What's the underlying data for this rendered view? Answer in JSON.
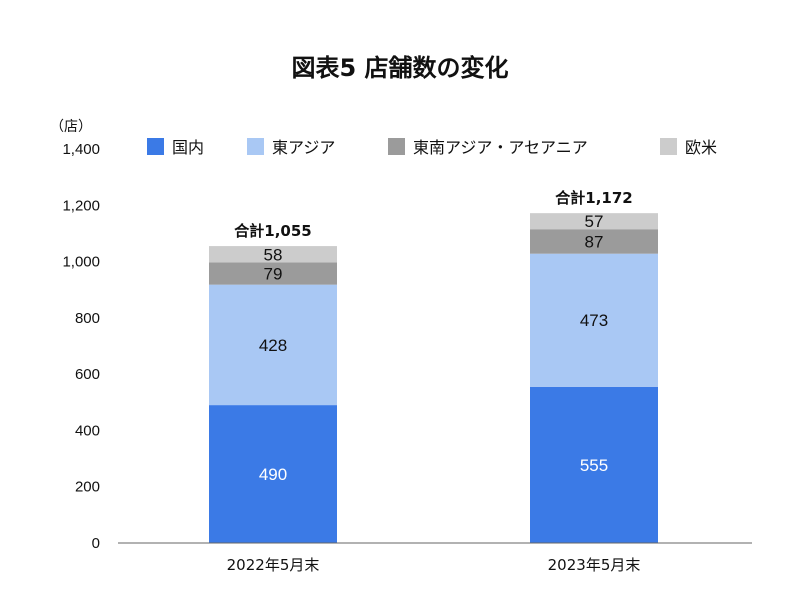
{
  "chart_data": {
    "type": "bar",
    "stacked": true,
    "title": "図表5 店舗数の変化",
    "ylabel": "（店）",
    "ylim": [
      0,
      1400
    ],
    "yticks": [
      0,
      200,
      400,
      600,
      800,
      1000,
      1200,
      1400
    ],
    "ytick_labels": [
      "0",
      "200",
      "400",
      "600",
      "800",
      "1,000",
      "1,200",
      "1,400"
    ],
    "categories": [
      "2022年5月末",
      "2023年5月末"
    ],
    "series": [
      {
        "name": "国内",
        "values": [
          490,
          555
        ],
        "color": "#3b7ae6",
        "label_color": "#ffffff"
      },
      {
        "name": "東アジア",
        "values": [
          428,
          473
        ],
        "color": "#a9c8f4",
        "label_color": "#111111"
      },
      {
        "name": "東南アジア・アセアニア",
        "values": [
          79,
          87
        ],
        "color": "#9b9b9b",
        "label_color": "#111111"
      },
      {
        "name": "欧米",
        "values": [
          58,
          57
        ],
        "color": "#cccccc",
        "label_color": "#111111"
      }
    ],
    "totals": [
      "合計1,055",
      "合計1,172"
    ],
    "legend_position": "top"
  }
}
